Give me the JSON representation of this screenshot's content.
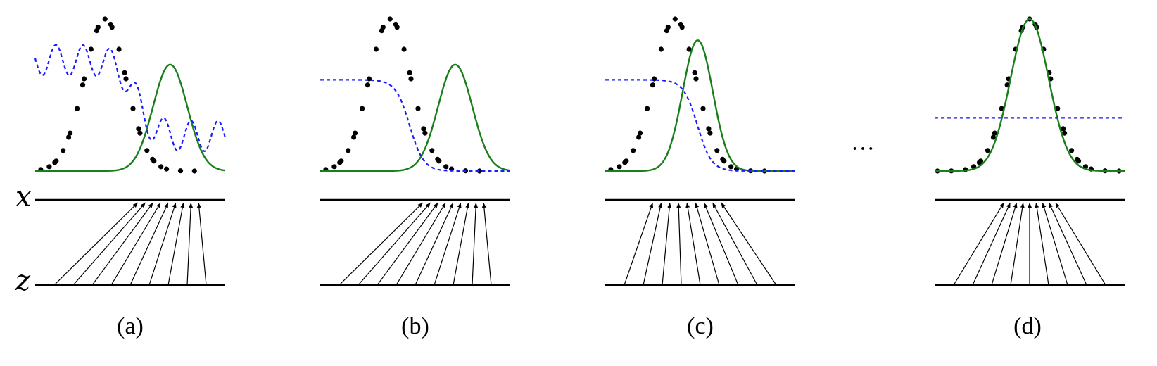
{
  "figure": {
    "axis_labels": {
      "x": "x",
      "z": "z"
    },
    "ellipsis": "···",
    "panels": [
      {
        "id": "a",
        "caption": "(a)",
        "generator_sigma": 0.85,
        "generator_mean": 0.55,
        "discriminator": "wavy"
      },
      {
        "id": "b",
        "caption": "(b)",
        "generator_sigma": 0.85,
        "generator_mean": 0.55,
        "discriminator": "sigmoid"
      },
      {
        "id": "c",
        "caption": "(c)",
        "generator_sigma": 0.75,
        "generator_mean": 0.1,
        "discriminator": "sigmoid"
      },
      {
        "id": "d",
        "caption": "(d)",
        "generator_sigma": 0.95,
        "generator_mean": 0.0,
        "discriminator": "flat"
      }
    ],
    "colors": {
      "data_points": "#000000",
      "generator_curve": "#1a7f1a",
      "discriminator_curve": "#1a1aff",
      "axis_line": "#000000",
      "mapping_arrow": "#000000"
    }
  }
}
